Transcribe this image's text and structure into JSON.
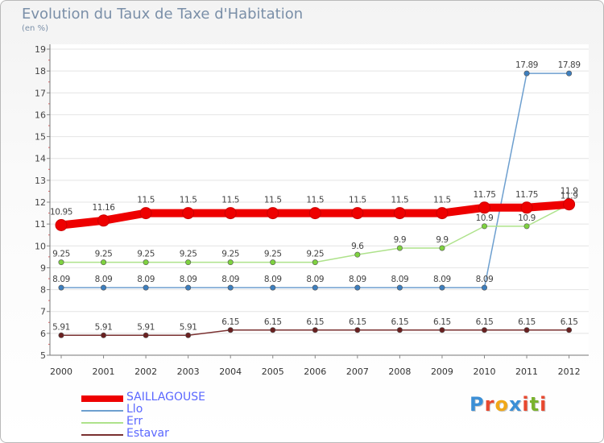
{
  "title": "Evolution du Taux de Taxe d'Habitation",
  "subtitle": "(en %)",
  "logo_text": "Proxiti",
  "chart_data": {
    "type": "line",
    "title": "Evolution du Taux de Taxe d'Habitation",
    "ylabel": "(en %)",
    "xlabel": "",
    "ylim": [
      5,
      19
    ],
    "yticks": [
      5,
      6,
      7,
      8,
      9,
      10,
      11,
      12,
      13,
      14,
      15,
      16,
      17,
      18,
      19
    ],
    "categories": [
      "2000",
      "2001",
      "2002",
      "2003",
      "2004",
      "2005",
      "2006",
      "2007",
      "2008",
      "2009",
      "2010",
      "2011",
      "2012"
    ],
    "legend_position": "bottom-left",
    "series": [
      {
        "name": "SAILLAGOUSE",
        "color": "#ee0000",
        "values": [
          10.95,
          11.16,
          11.5,
          11.5,
          11.5,
          11.5,
          11.5,
          11.5,
          11.5,
          11.5,
          11.75,
          11.75,
          11.9
        ],
        "labels": [
          "10.95",
          "11.16",
          "11.5",
          "11.5",
          "11.5",
          "11.5",
          "11.5",
          "11.5",
          "11.5",
          "11.5",
          "11.75",
          "11.75",
          "11.9"
        ]
      },
      {
        "name": "Llo",
        "color": "#6d9fcf",
        "marker_color": "#3d7fbf",
        "values": [
          8.09,
          8.09,
          8.09,
          8.09,
          8.09,
          8.09,
          8.09,
          8.09,
          8.09,
          8.09,
          8.09,
          17.89,
          17.89
        ],
        "labels": [
          "8.09",
          "8.09",
          "8.09",
          "8.09",
          "8.09",
          "8.09",
          "8.09",
          "8.09",
          "8.09",
          "8.09",
          "8.09",
          "17.89",
          "17.89"
        ]
      },
      {
        "name": "Err",
        "color": "#aee28b",
        "marker_color": "#7ed23f",
        "values": [
          9.25,
          9.25,
          9.25,
          9.25,
          9.25,
          9.25,
          9.25,
          9.6,
          9.9,
          9.9,
          10.9,
          10.9,
          11.9
        ],
        "labels": [
          "9.25",
          "9.25",
          "9.25",
          "9.25",
          "9.25",
          "9.25",
          "9.25",
          "9.6",
          "9.9",
          "9.9",
          "10.9",
          "10.9",
          "11.9"
        ]
      },
      {
        "name": "Estavar",
        "color": "#7a3030",
        "marker_color": "#6a2020",
        "values": [
          5.91,
          5.91,
          5.91,
          5.91,
          6.15,
          6.15,
          6.15,
          6.15,
          6.15,
          6.15,
          6.15,
          6.15,
          6.15
        ],
        "labels": [
          "5.91",
          "5.91",
          "5.91",
          "5.91",
          "6.15",
          "6.15",
          "6.15",
          "6.15",
          "6.15",
          "6.15",
          "6.15",
          "6.15",
          "6.15"
        ]
      }
    ]
  }
}
